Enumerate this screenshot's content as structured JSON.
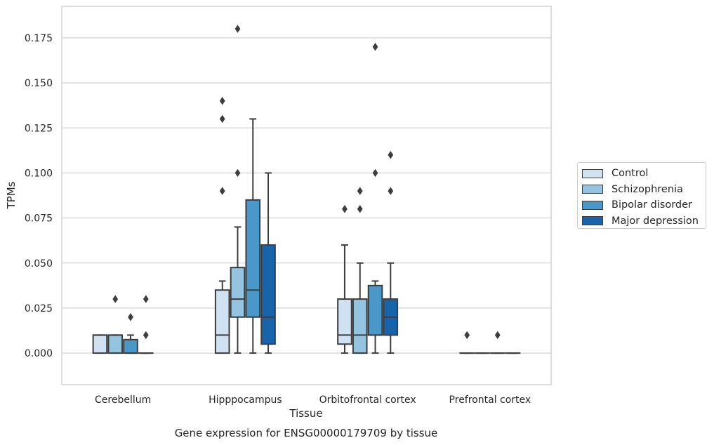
{
  "chart_data": {
    "type": "box",
    "title": "Gene expression for ENSG00000179709 by tissue",
    "xlabel": "Tissue",
    "ylabel": "TPMs",
    "ylim": [
      -0.0175,
      0.1925
    ],
    "yticks": [
      "0.000",
      "0.025",
      "0.050",
      "0.075",
      "0.100",
      "0.125",
      "0.150",
      "0.175"
    ],
    "ytick_values": [
      0,
      0.025,
      0.05,
      0.075,
      0.1,
      0.125,
      0.15,
      0.175
    ],
    "grid": "horizontal",
    "legend_position": "right",
    "categories": [
      "Cerebellum",
      "Hipppocampus",
      "Orbitofrontal cortex",
      "Prefrontal cortex"
    ],
    "series": [
      {
        "name": "Control",
        "color": "#d0e1f2",
        "boxes": [
          {
            "q1": 0,
            "median": 0.01,
            "q3": 0.01,
            "whisker_low": 0,
            "whisker_high": 0.01,
            "outliers": []
          },
          {
            "q1": 0,
            "median": 0.01,
            "q3": 0.035,
            "whisker_low": 0,
            "whisker_high": 0.04,
            "outliers": [
              0.09,
              0.13,
              0.14
            ]
          },
          {
            "q1": 0.005,
            "median": 0.01,
            "q3": 0.03,
            "whisker_low": 0,
            "whisker_high": 0.06,
            "outliers": [
              0.08
            ]
          },
          {
            "q1": 0,
            "median": 0,
            "q3": 0,
            "whisker_low": 0,
            "whisker_high": 0,
            "outliers": [
              0.01
            ]
          }
        ]
      },
      {
        "name": "Schizophrenia",
        "color": "#94c4df",
        "boxes": [
          {
            "q1": 0,
            "median": 0.01,
            "q3": 0.01,
            "whisker_low": 0,
            "whisker_high": 0.01,
            "outliers": [
              0.03
            ]
          },
          {
            "q1": 0.02,
            "median": 0.03,
            "q3": 0.0475,
            "whisker_low": 0,
            "whisker_high": 0.07,
            "outliers": [
              0.1,
              0.18
            ]
          },
          {
            "q1": 0,
            "median": 0.01,
            "q3": 0.03,
            "whisker_low": 0,
            "whisker_high": 0.05,
            "outliers": [
              0.08,
              0.09
            ]
          },
          {
            "q1": 0,
            "median": 0,
            "q3": 0,
            "whisker_low": 0,
            "whisker_high": 0,
            "outliers": []
          }
        ]
      },
      {
        "name": "Bipolar disorder",
        "color": "#4a98c9",
        "boxes": [
          {
            "q1": 0,
            "median": 0,
            "q3": 0.0075,
            "whisker_low": 0,
            "whisker_high": 0.01,
            "outliers": [
              0.02
            ]
          },
          {
            "q1": 0.02,
            "median": 0.035,
            "q3": 0.085,
            "whisker_low": 0,
            "whisker_high": 0.13,
            "outliers": []
          },
          {
            "q1": 0.01,
            "median": 0.01,
            "q3": 0.0375,
            "whisker_low": 0,
            "whisker_high": 0.04,
            "outliers": [
              0.1,
              0.17
            ]
          },
          {
            "q1": 0,
            "median": 0,
            "q3": 0,
            "whisker_low": 0,
            "whisker_high": 0,
            "outliers": [
              0.01
            ]
          }
        ]
      },
      {
        "name": "Major depression",
        "color": "#1764ab",
        "boxes": [
          {
            "q1": 0,
            "median": 0,
            "q3": 0,
            "whisker_low": 0,
            "whisker_high": 0,
            "outliers": [
              0.01,
              0.03
            ]
          },
          {
            "q1": 0.005,
            "median": 0.02,
            "q3": 0.06,
            "whisker_low": 0,
            "whisker_high": 0.1,
            "outliers": []
          },
          {
            "q1": 0.01,
            "median": 0.02,
            "q3": 0.03,
            "whisker_low": 0,
            "whisker_high": 0.05,
            "outliers": [
              0.09,
              0.11
            ]
          },
          {
            "q1": 0,
            "median": 0,
            "q3": 0,
            "whisker_low": 0,
            "whisker_high": 0,
            "outliers": []
          }
        ]
      }
    ]
  }
}
